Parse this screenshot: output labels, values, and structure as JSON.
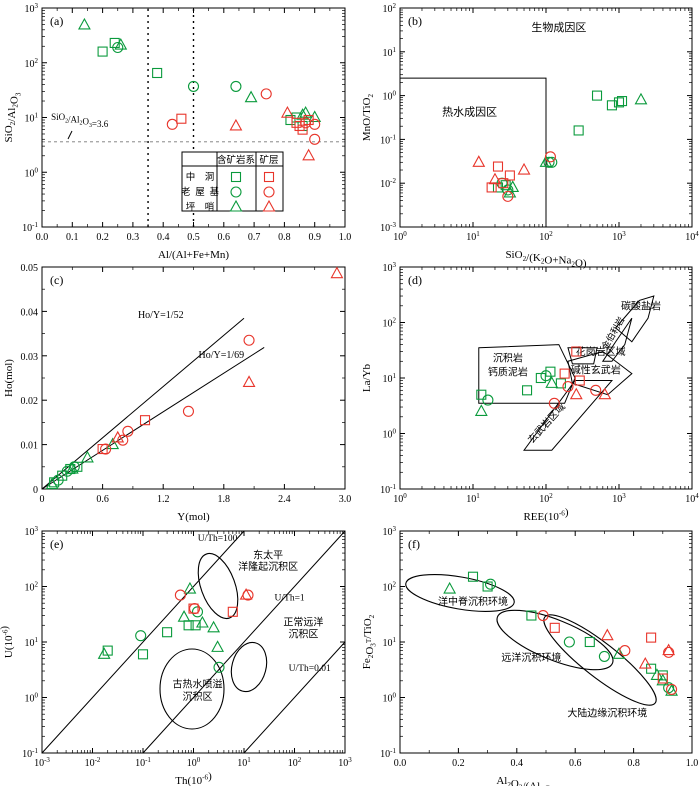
{
  "chart_data": [
    {
      "panel": "(a)",
      "type": "scatter",
      "xlabel": "Al/(Al+Fe+Mn)",
      "ylabel": "SiO2/Al2O3",
      "xscale": "linear",
      "yscale": "log",
      "xlim": [
        0.0,
        1.0
      ],
      "ylim": [
        0.1,
        1000
      ],
      "xticks": [
        "0.0",
        "0.1",
        "0.2",
        "0.3",
        "0.4",
        "0.5",
        "0.6",
        "0.7",
        "0.8",
        "0.9",
        "1.0"
      ],
      "yticks": [
        "10^-1",
        "10^0",
        "10^1",
        "10^2",
        "10^3"
      ],
      "annotations": [
        {
          "text": "SiO2/Al2O3=3.6",
          "x": 0.02,
          "y": 9
        }
      ],
      "reference_lines": {
        "vertical_dotted": [
          0.35,
          0.5
        ],
        "horizontal_dashed": [
          3.6
        ]
      },
      "legend": {
        "columns": [
          "含矿岩系",
          "矿层"
        ],
        "rows": [
          "中洞",
          "老屋基",
          "坪哨"
        ]
      },
      "series": [
        {
          "style": "green-square",
          "points": [
            [
              0.2,
              160
            ],
            [
              0.24,
              230
            ],
            [
              0.38,
              65
            ],
            [
              0.82,
              9
            ],
            [
              0.84,
              10
            ],
            [
              0.86,
              7
            ]
          ]
        },
        {
          "style": "green-circle",
          "points": [
            [
              0.25,
              190
            ],
            [
              0.5,
              37
            ],
            [
              0.64,
              37
            ]
          ]
        },
        {
          "style": "green-triangle",
          "points": [
            [
              0.14,
              490
            ],
            [
              0.26,
              210
            ],
            [
              0.69,
              23
            ],
            [
              0.86,
              11
            ],
            [
              0.87,
              12
            ],
            [
              0.9,
              10
            ]
          ]
        },
        {
          "style": "red-square",
          "points": [
            [
              0.46,
              9.5
            ],
            [
              0.84,
              8
            ],
            [
              0.85,
              7
            ],
            [
              0.86,
              6
            ],
            [
              0.88,
              9
            ]
          ]
        },
        {
          "style": "red-circle",
          "points": [
            [
              0.43,
              7.5
            ],
            [
              0.74,
              27
            ],
            [
              0.87,
              8
            ],
            [
              0.9,
              4
            ],
            [
              0.9,
              7.5
            ]
          ]
        },
        {
          "style": "red-triangle",
          "points": [
            [
              0.64,
              7
            ],
            [
              0.81,
              12
            ],
            [
              0.88,
              2
            ]
          ]
        }
      ]
    },
    {
      "panel": "(b)",
      "type": "scatter",
      "xlabel": "SiO2/(K2O+Na2O)",
      "ylabel": "MnO/TiO2",
      "xscale": "log",
      "yscale": "log",
      "xlim": [
        1,
        10000
      ],
      "ylim": [
        0.001,
        100
      ],
      "xticks": [
        "10^0",
        "10^1",
        "10^2",
        "10^3",
        "10^4"
      ],
      "yticks": [
        "10^-3",
        "10^-2",
        "10^-1",
        "10^0",
        "10^1",
        "10^2"
      ],
      "regions": [
        "生物成因区",
        "热水成因区"
      ],
      "series": [
        {
          "style": "green-square",
          "points": [
            [
              22,
              0.008
            ],
            [
              28,
              0.009
            ],
            [
              280,
              0.16
            ],
            [
              500,
              1.0
            ],
            [
              800,
              0.6
            ],
            [
              1000,
              0.7
            ],
            [
              1100,
              0.75
            ]
          ]
        },
        {
          "style": "green-circle",
          "points": [
            [
              25,
              0.01
            ],
            [
              30,
              0.007
            ],
            [
              110,
              0.03
            ],
            [
              120,
              0.03
            ]
          ]
        },
        {
          "style": "green-triangle",
          "points": [
            [
              32,
              0.006
            ],
            [
              35,
              0.008
            ],
            [
              100,
              0.03
            ],
            [
              2000,
              0.8
            ]
          ]
        },
        {
          "style": "red-square",
          "points": [
            [
              18,
              0.008
            ],
            [
              22,
              0.024
            ],
            [
              26,
              0.01
            ],
            [
              32,
              0.015
            ]
          ]
        },
        {
          "style": "red-circle",
          "points": [
            [
              30,
              0.005
            ],
            [
              115,
              0.04
            ]
          ]
        },
        {
          "style": "red-triangle",
          "points": [
            [
              12,
              0.03
            ],
            [
              20,
              0.012
            ],
            [
              50,
              0.02
            ]
          ]
        }
      ]
    },
    {
      "panel": "(c)",
      "type": "scatter",
      "xlabel": "Y(mol)",
      "ylabel": "Ho(mol)",
      "xscale": "linear",
      "yscale": "linear",
      "xlim": [
        0,
        3.0
      ],
      "ylim": [
        0,
        0.05
      ],
      "xticks": [
        "0",
        "0.6",
        "1.2",
        "1.8",
        "2.4",
        "3.0"
      ],
      "yticks": [
        "0",
        "0.01",
        "0.02",
        "0.03",
        "0.04",
        "0.05"
      ],
      "lines": [
        "Ho/Y=1/52",
        "Ho/Y=1/69"
      ],
      "series": [
        {
          "style": "green-square",
          "points": [
            [
              0.12,
              0.0015
            ],
            [
              0.2,
              0.003
            ],
            [
              0.28,
              0.0045
            ],
            [
              0.35,
              0.005
            ]
          ]
        },
        {
          "style": "green-circle",
          "points": [
            [
              0.16,
              0.002
            ],
            [
              0.25,
              0.004
            ],
            [
              0.32,
              0.005
            ]
          ]
        },
        {
          "style": "green-triangle",
          "points": [
            [
              0.1,
              0.001
            ],
            [
              0.3,
              0.0045
            ],
            [
              0.45,
              0.007
            ],
            [
              0.7,
              0.01
            ]
          ]
        },
        {
          "style": "red-square",
          "points": [
            [
              0.6,
              0.009
            ],
            [
              1.02,
              0.0155
            ]
          ]
        },
        {
          "style": "red-circle",
          "points": [
            [
              0.63,
              0.009
            ],
            [
              0.8,
              0.011
            ],
            [
              0.85,
              0.013
            ],
            [
              1.45,
              0.0175
            ],
            [
              2.05,
              0.0335
            ]
          ]
        },
        {
          "style": "red-triangle",
          "points": [
            [
              0.75,
              0.0115
            ],
            [
              2.05,
              0.024
            ],
            [
              2.92,
              0.0485
            ]
          ]
        }
      ]
    },
    {
      "panel": "(d)",
      "type": "scatter",
      "xlabel": "REE(10^-6)",
      "ylabel": "La/Yb",
      "xscale": "log",
      "yscale": "log",
      "xlim": [
        1,
        10000
      ],
      "ylim": [
        0.1,
        1000
      ],
      "xticks": [
        "10^0",
        "10^1",
        "10^2",
        "10^3",
        "10^4"
      ],
      "yticks": [
        "10^-1",
        "10^0",
        "10^1",
        "10^2",
        "10^3"
      ],
      "regions": [
        "碳酸盐岩",
        "金伯利岩",
        "沉积岩",
        "钙质泥岩",
        "花岗岩区域",
        "碱性玄武岩",
        "玄武岩区域"
      ],
      "series": [
        {
          "style": "green-square",
          "points": [
            [
              13,
              5
            ],
            [
              55,
              6
            ],
            [
              85,
              10
            ],
            [
              115,
              13
            ],
            [
              160,
              8
            ]
          ]
        },
        {
          "style": "green-circle",
          "points": [
            [
              16,
              4
            ],
            [
              100,
              11
            ]
          ]
        },
        {
          "style": "green-triangle",
          "points": [
            [
              13,
              2.5
            ],
            [
              120,
              8
            ]
          ]
        },
        {
          "style": "red-square",
          "points": [
            [
              180,
              12
            ],
            [
              260,
              30
            ],
            [
              290,
              9
            ]
          ]
        },
        {
          "style": "red-circle",
          "points": [
            [
              130,
              3.5
            ],
            [
              200,
              7
            ],
            [
              480,
              6
            ]
          ]
        },
        {
          "style": "red-triangle",
          "points": [
            [
              260,
              5
            ],
            [
              640,
              5
            ]
          ]
        }
      ]
    },
    {
      "panel": "(e)",
      "type": "scatter",
      "xlabel": "Th(10^-6)",
      "ylabel": "U(10^-6)",
      "xscale": "log",
      "yscale": "log",
      "xlim": [
        0.001,
        1000
      ],
      "ylim": [
        0.1,
        1000
      ],
      "xticks": [
        "10^-3",
        "10^-2",
        "10^-1",
        "10^0",
        "10^1",
        "10^2",
        "10^3"
      ],
      "yticks": [
        "10^-1",
        "10^0",
        "10^1",
        "10^2",
        "10^3"
      ],
      "lines": [
        "U/Th=100",
        "U/Th=1",
        "U/Th=0.01"
      ],
      "regions": [
        "东太平洋隆起沉积区",
        "正常远洋沉积区",
        "古热水喷溢沉积区"
      ],
      "series": [
        {
          "style": "green-square",
          "points": [
            [
              0.02,
              7
            ],
            [
              0.1,
              6
            ],
            [
              0.3,
              15
            ],
            [
              0.8,
              20
            ],
            [
              1.1,
              20
            ]
          ]
        },
        {
          "style": "green-circle",
          "points": [
            [
              0.09,
              13
            ],
            [
              1.2,
              35
            ],
            [
              3.2,
              3.5
            ]
          ]
        },
        {
          "style": "green-triangle",
          "points": [
            [
              0.017,
              6
            ],
            [
              0.65,
              28
            ],
            [
              0.85,
              90
            ],
            [
              1.5,
              22
            ],
            [
              2.5,
              18
            ],
            [
              3.0,
              8
            ]
          ]
        },
        {
          "style": "red-square",
          "points": [
            [
              1.0,
              40
            ],
            [
              6.0,
              35
            ]
          ]
        },
        {
          "style": "red-circle",
          "points": [
            [
              0.55,
              70
            ],
            [
              1.05,
              40
            ],
            [
              12,
              70
            ]
          ]
        },
        {
          "style": "red-triangle",
          "points": [
            [
              11,
              70
            ]
          ]
        }
      ]
    },
    {
      "panel": "(f)",
      "type": "scatter",
      "xlabel": "Al2O3/(Al2O3+Fe2O3T)",
      "ylabel": "Fe2O3T/TiO2",
      "xscale": "linear",
      "yscale": "log",
      "xlim": [
        0.0,
        1.0
      ],
      "ylim": [
        0.1,
        1000
      ],
      "xticks": [
        "0.0",
        "0.2",
        "0.4",
        "0.6",
        "0.8",
        "1.0"
      ],
      "yticks": [
        "10^-1",
        "10^0",
        "10^1",
        "10^2",
        "10^3"
      ],
      "regions": [
        "洋中脊沉积环境",
        "远洋沉积环境",
        "大陆边缘沉积环境"
      ],
      "series": [
        {
          "style": "green-square",
          "points": [
            [
              0.25,
              150
            ],
            [
              0.3,
              100
            ],
            [
              0.45,
              30
            ],
            [
              0.65,
              10
            ],
            [
              0.86,
              3.3
            ],
            [
              0.9,
              2.5
            ]
          ]
        },
        {
          "style": "green-circle",
          "points": [
            [
              0.31,
              110
            ],
            [
              0.58,
              10
            ],
            [
              0.7,
              5.5
            ],
            [
              0.92,
              1.5
            ]
          ]
        },
        {
          "style": "green-triangle",
          "points": [
            [
              0.17,
              90
            ],
            [
              0.75,
              6
            ],
            [
              0.88,
              2.5
            ],
            [
              0.9,
              2.0
            ],
            [
              0.93,
              1.3
            ]
          ]
        },
        {
          "style": "red-square",
          "points": [
            [
              0.53,
              18
            ],
            [
              0.86,
              12
            ],
            [
              0.9,
              2.2
            ]
          ]
        },
        {
          "style": "red-circle",
          "points": [
            [
              0.49,
              30
            ],
            [
              0.77,
              7
            ],
            [
              0.92,
              6.5
            ],
            [
              0.93,
              1.4
            ]
          ]
        },
        {
          "style": "red-triangle",
          "points": [
            [
              0.71,
              13
            ],
            [
              0.84,
              4
            ],
            [
              0.92,
              7
            ]
          ]
        }
      ]
    }
  ]
}
